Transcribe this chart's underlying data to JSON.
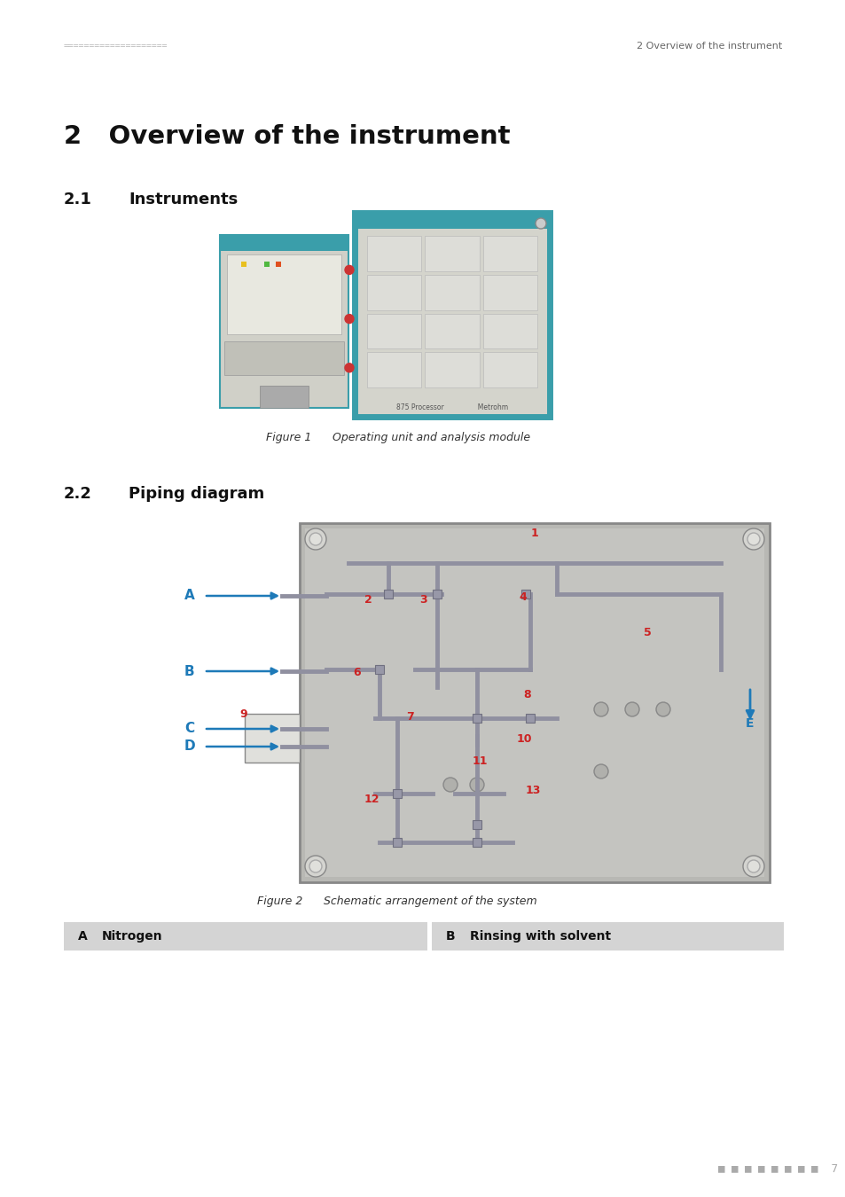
{
  "bg_color": "#ffffff",
  "header_dots_left": "====================",
  "header_text_right": "2 Overview of the instrument",
  "chapter_title": "2   Overview of the instrument",
  "section1_num": "2.1",
  "section1_text": "Instruments",
  "section2_num": "2.2",
  "section2_text": "Piping diagram",
  "fig1_caption_italic": "Figure 1",
  "fig1_caption_rest": "    Operating unit and analysis module",
  "fig2_caption_italic": "Figure 2",
  "fig2_caption_rest": "    Schematic arrangement of the system",
  "box_a_label": "A",
  "box_a_text": "Nitrogen",
  "box_b_label": "B",
  "box_b_text": "Rinsing with solvent",
  "box_color": "#d4d4d4",
  "page_number": "7",
  "teal_color": "#3a9eaa",
  "panel_color": "#d8d8d0",
  "pipe_gray": "#9a9a9a",
  "blue_label": "#1e7ab8",
  "red_label": "#cc2222"
}
